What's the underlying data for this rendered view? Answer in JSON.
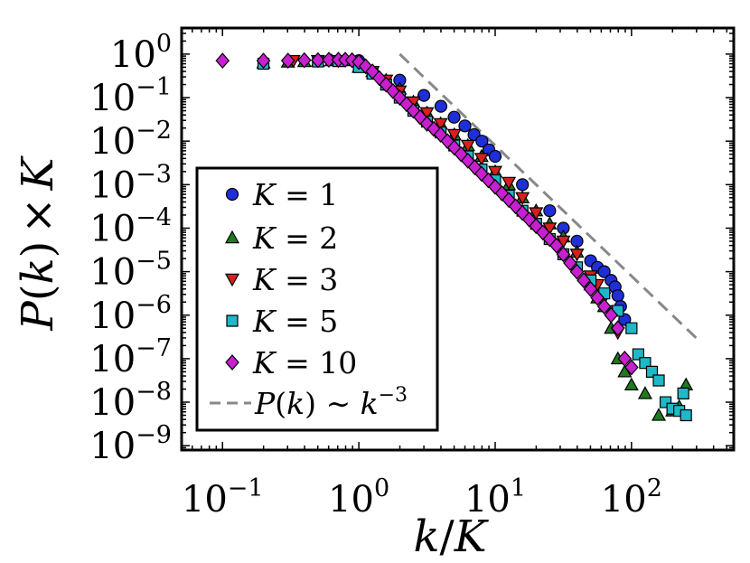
{
  "chart_data": {
    "type": "scatter",
    "xscale": "log",
    "yscale": "log",
    "xlim_exp": [
      -1.3,
      2.75
    ],
    "ylim_exp": [
      -9.1,
      0.6
    ],
    "xlabel": {
      "base": "k",
      "slash": "/",
      "var": "K"
    },
    "ylabel": {
      "func": "P",
      "open": "(",
      "arg": "k",
      "close": ")",
      "times": "×",
      "var": "K"
    },
    "x_ticks": [
      {
        "base": "10",
        "exp": "−1",
        "value": 0.1
      },
      {
        "base": "10",
        "exp": "0",
        "value": 1
      },
      {
        "base": "10",
        "exp": "1",
        "value": 10
      },
      {
        "base": "10",
        "exp": "2",
        "value": 100
      }
    ],
    "y_ticks": [
      {
        "base": "10",
        "exp": "0",
        "value": 1
      },
      {
        "base": "10",
        "exp": "−1",
        "value": 0.1
      },
      {
        "base": "10",
        "exp": "−2",
        "value": 0.01
      },
      {
        "base": "10",
        "exp": "−3",
        "value": 0.001
      },
      {
        "base": "10",
        "exp": "−4",
        "value": 0.0001
      },
      {
        "base": "10",
        "exp": "−5",
        "value": 1e-05
      },
      {
        "base": "10",
        "exp": "−6",
        "value": 1e-06
      },
      {
        "base": "10",
        "exp": "−7",
        "value": 1e-07
      },
      {
        "base": "10",
        "exp": "−8",
        "value": 1e-08
      },
      {
        "base": "10",
        "exp": "−9",
        "value": 1e-09
      }
    ],
    "series": [
      {
        "name": "K = 1",
        "label_var": "K",
        "label_eq": " = ",
        "label_val": "1",
        "marker": "circle",
        "color": "#1f2fd8",
        "points_exp": [
          [
            0,
            -0.15
          ],
          [
            0.3,
            -0.6
          ],
          [
            0.477,
            -0.95
          ],
          [
            0.602,
            -1.2
          ],
          [
            0.699,
            -1.45
          ],
          [
            0.778,
            -1.65
          ],
          [
            0.845,
            -1.85
          ],
          [
            0.903,
            -2.0
          ],
          [
            0.954,
            -2.2
          ],
          [
            1.0,
            -2.35
          ],
          [
            1.2,
            -3.0
          ],
          [
            1.4,
            -3.6
          ],
          [
            1.5,
            -4.0
          ],
          [
            1.6,
            -4.3
          ],
          [
            1.7,
            -4.75
          ],
          [
            1.75,
            -4.9
          ],
          [
            1.8,
            -5.0
          ],
          [
            1.85,
            -5.2
          ],
          [
            1.88,
            -5.35
          ],
          [
            1.9,
            -5.55
          ],
          [
            1.92,
            -5.8
          ],
          [
            1.95,
            -6.1
          ]
        ]
      },
      {
        "name": "K = 2",
        "label_var": "K",
        "label_eq": " = ",
        "label_val": "2",
        "marker": "triangle-up",
        "color": "#1f7a1f",
        "points_exp": [
          [
            -0.7,
            -0.2
          ],
          [
            -0.52,
            -0.18
          ],
          [
            -0.4,
            -0.17
          ],
          [
            -0.3,
            -0.16
          ],
          [
            -0.2,
            -0.15
          ],
          [
            -0.1,
            -0.15
          ],
          [
            0,
            -0.3
          ],
          [
            0.1,
            -0.4
          ],
          [
            0.2,
            -0.6
          ],
          [
            0.3,
            -0.8
          ],
          [
            0.4,
            -1.1
          ],
          [
            0.5,
            -1.35
          ],
          [
            0.6,
            -1.6
          ],
          [
            0.7,
            -1.85
          ],
          [
            0.8,
            -2.1
          ],
          [
            0.9,
            -2.35
          ],
          [
            1.0,
            -2.7
          ],
          [
            1.1,
            -3.0
          ],
          [
            1.2,
            -3.3
          ],
          [
            1.3,
            -3.6
          ],
          [
            1.4,
            -3.9
          ],
          [
            1.5,
            -4.2
          ],
          [
            1.6,
            -4.55
          ],
          [
            1.7,
            -5.3
          ],
          [
            1.75,
            -5.6
          ],
          [
            1.8,
            -5.8
          ],
          [
            1.85,
            -6.3
          ],
          [
            1.9,
            -7.0
          ],
          [
            1.95,
            -7.3
          ],
          [
            2.0,
            -7.6
          ],
          [
            2.1,
            -7.8
          ],
          [
            2.2,
            -8.3
          ],
          [
            2.3,
            -8.2
          ],
          [
            2.35,
            -8.1
          ],
          [
            2.4,
            -7.6
          ]
        ]
      },
      {
        "name": "K = 3",
        "label_var": "K",
        "label_eq": " = ",
        "label_val": "3",
        "marker": "triangle-down",
        "color": "#d81f1f",
        "points_exp": [
          [
            -0.48,
            -0.15
          ],
          [
            -0.3,
            -0.15
          ],
          [
            -0.15,
            -0.15
          ],
          [
            0,
            -0.25
          ],
          [
            0.1,
            -0.4
          ],
          [
            0.2,
            -0.6
          ],
          [
            0.3,
            -0.85
          ],
          [
            0.4,
            -1.1
          ],
          [
            0.5,
            -1.35
          ],
          [
            0.6,
            -1.6
          ],
          [
            0.7,
            -1.85
          ],
          [
            0.8,
            -2.1
          ],
          [
            0.9,
            -2.4
          ],
          [
            1.0,
            -2.7
          ],
          [
            1.1,
            -2.95
          ],
          [
            1.2,
            -3.3
          ],
          [
            1.3,
            -3.65
          ],
          [
            1.4,
            -4.0
          ],
          [
            1.5,
            -4.3
          ],
          [
            1.6,
            -4.6
          ],
          [
            1.7,
            -5.1
          ],
          [
            1.75,
            -5.3
          ],
          [
            1.8,
            -5.6
          ],
          [
            1.85,
            -5.9
          ],
          [
            1.9,
            -6.4
          ]
        ]
      },
      {
        "name": "K = 5",
        "label_var": "K",
        "label_eq": " = ",
        "label_val": "5",
        "marker": "square",
        "color": "#1fb8c8",
        "points_exp": [
          [
            -0.7,
            -0.22
          ],
          [
            -0.3,
            -0.17
          ],
          [
            -0.15,
            -0.16
          ],
          [
            0,
            -0.3
          ],
          [
            0.1,
            -0.45
          ],
          [
            0.2,
            -0.7
          ],
          [
            0.3,
            -1.0
          ],
          [
            0.4,
            -1.3
          ],
          [
            0.5,
            -1.55
          ],
          [
            0.6,
            -1.8
          ],
          [
            0.7,
            -2.1
          ],
          [
            0.8,
            -2.35
          ],
          [
            0.9,
            -2.65
          ],
          [
            1.0,
            -2.9
          ],
          [
            1.1,
            -3.25
          ],
          [
            1.2,
            -3.6
          ],
          [
            1.3,
            -3.9
          ],
          [
            1.4,
            -4.25
          ],
          [
            1.5,
            -4.6
          ],
          [
            1.6,
            -4.9
          ],
          [
            1.7,
            -5.2
          ],
          [
            1.8,
            -5.5
          ],
          [
            1.9,
            -5.9
          ],
          [
            2.0,
            -6.3
          ],
          [
            2.05,
            -6.9
          ],
          [
            2.1,
            -7.1
          ],
          [
            2.15,
            -7.3
          ],
          [
            2.2,
            -7.5
          ],
          [
            2.25,
            -8.0
          ],
          [
            2.3,
            -8.15
          ],
          [
            2.35,
            -8.2
          ],
          [
            2.4,
            -8.3
          ],
          [
            2.38,
            -7.8
          ]
        ]
      },
      {
        "name": "K = 10",
        "label_var": "K",
        "label_eq": " = ",
        "label_val": "10",
        "marker": "diamond",
        "color": "#c81fd0",
        "points_exp": [
          [
            -1.0,
            -0.15
          ],
          [
            -0.7,
            -0.15
          ],
          [
            -0.52,
            -0.15
          ],
          [
            -0.4,
            -0.14
          ],
          [
            -0.3,
            -0.14
          ],
          [
            -0.22,
            -0.13
          ],
          [
            -0.15,
            -0.13
          ],
          [
            -0.1,
            -0.13
          ],
          [
            -0.05,
            -0.14
          ],
          [
            0,
            -0.18
          ],
          [
            0.05,
            -0.28
          ],
          [
            0.1,
            -0.4
          ],
          [
            0.15,
            -0.55
          ],
          [
            0.2,
            -0.7
          ],
          [
            0.25,
            -0.85
          ],
          [
            0.3,
            -1.0
          ],
          [
            0.35,
            -1.15
          ],
          [
            0.4,
            -1.3
          ],
          [
            0.45,
            -1.45
          ],
          [
            0.5,
            -1.6
          ],
          [
            0.55,
            -1.72
          ],
          [
            0.6,
            -1.85
          ],
          [
            0.65,
            -2.0
          ],
          [
            0.7,
            -2.15
          ],
          [
            0.75,
            -2.3
          ],
          [
            0.8,
            -2.45
          ],
          [
            0.85,
            -2.6
          ],
          [
            0.9,
            -2.75
          ],
          [
            0.95,
            -2.9
          ],
          [
            1.0,
            -3.05
          ],
          [
            1.05,
            -3.2
          ],
          [
            1.1,
            -3.35
          ],
          [
            1.15,
            -3.5
          ],
          [
            1.2,
            -3.65
          ],
          [
            1.25,
            -3.8
          ],
          [
            1.3,
            -3.95
          ],
          [
            1.35,
            -4.1
          ],
          [
            1.4,
            -4.25
          ],
          [
            1.45,
            -4.4
          ],
          [
            1.5,
            -4.6
          ],
          [
            1.55,
            -4.8
          ],
          [
            1.6,
            -5.0
          ],
          [
            1.65,
            -5.2
          ],
          [
            1.7,
            -5.4
          ],
          [
            1.75,
            -5.6
          ],
          [
            1.8,
            -5.8
          ],
          [
            1.85,
            -6.0
          ],
          [
            1.9,
            -6.3
          ],
          [
            1.95,
            -7.0
          ],
          [
            2.0,
            -7.2
          ]
        ]
      }
    ],
    "reference_line": {
      "label_func": "P",
      "label_open": "(",
      "label_arg": "k",
      "label_close": ") ∼ ",
      "label_base": "k",
      "label_exp": "−3",
      "color": "#888888",
      "points_exp": [
        [
          0.3,
          0.0
        ],
        [
          2.48,
          -6.54
        ]
      ]
    },
    "legend_position": "lower-left"
  }
}
